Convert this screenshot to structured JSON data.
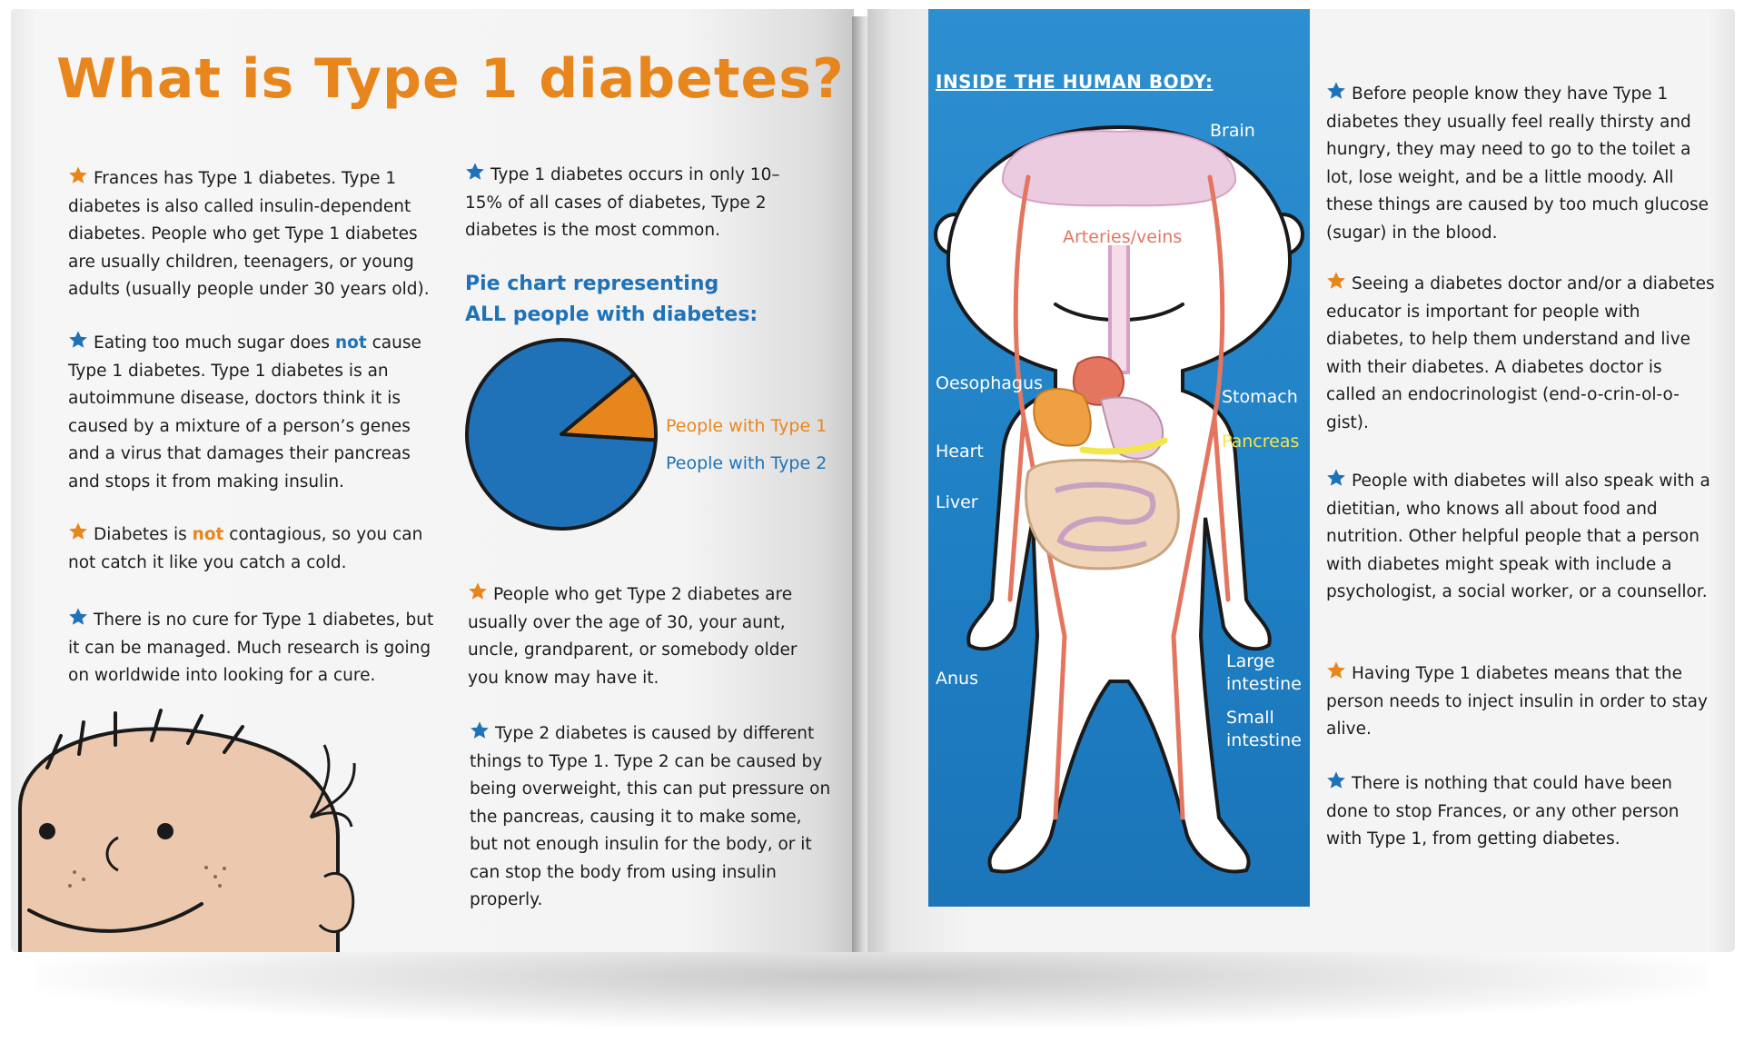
{
  "left_page": {
    "title": "What is Type 1 diabetes?",
    "col1": [
      {
        "star": "orange",
        "text": "Frances has Type 1 diabetes. Type 1 diabetes is also called insulin-dependent diabetes. People who get Type 1 diabetes are usually children, teenagers, or young adults (usually people under 30 years old)."
      },
      {
        "star": "blue",
        "before": "Eating too much sugar does ",
        "emph": "not",
        "after": " cause Type 1 diabetes. Type 1 diabetes is an autoimmune disease, doctors think it is caused by a mixture of a person’s genes and a virus that damages their pancreas and stops it from making insulin."
      },
      {
        "star": "orange",
        "before": "Diabetes is ",
        "emph": "not",
        "after": " contagious, so you can not catch it like you catch a cold."
      },
      {
        "star": "blue",
        "text": "There is no cure for Type 1 diabetes, but it can be managed. Much research is going on worldwide into looking for a cure."
      }
    ],
    "col2": [
      {
        "star": "blue",
        "text": "Type 1 diabetes occurs in only 10–15% of all cases of diabetes, Type 2 diabetes is the most common."
      },
      {
        "star": "orange",
        "text": "People who get Type 2 diabetes are usually over the age of 30, your aunt, uncle, grandparent, or somebody older you know may have it."
      },
      {
        "star": "blue",
        "text": "Type 2 diabetes is caused by different things to Type 1. Type 2 can be caused by being overweight, this can put pressure on the pancreas, causing it to make some, but not enough insulin for the body, or it can stop the body from using insulin properly."
      }
    ],
    "pie_title_line1": "Pie chart representing",
    "pie_title_line2": "ALL people with diabetes:"
  },
  "chart_data": {
    "type": "pie",
    "title": "Pie chart representing ALL people with diabetes:",
    "slices": [
      {
        "label": "People with Type 1",
        "value": 12,
        "color": "#e8861e"
      },
      {
        "label": "People with Type 2",
        "value": 88,
        "color": "#1f72b8"
      }
    ]
  },
  "right_page": {
    "panel_heading": "INSIDE THE HUMAN BODY:",
    "labels": {
      "brain": "Brain",
      "arteries": "Arteries/veins",
      "oesophagus": "Oesophagus",
      "stomach": "Stomach",
      "pancreas": "Pancreas",
      "heart": "Heart",
      "liver": "Liver",
      "large_intestine_1": "Large",
      "large_intestine_2": "intestine",
      "small_intestine_1": "Small",
      "small_intestine_2": "intestine",
      "anus": "Anus"
    },
    "paragraphs": [
      {
        "star": "blue",
        "text": "Before people know they have Type 1 diabetes they usually feel really thirsty and hungry, they may need to go to the toilet a lot, lose weight, and be a little moody. All these things are caused by too much glucose (sugar) in the blood."
      },
      {
        "star": "orange",
        "text": "Seeing a diabetes doctor and/or a diabetes educator is important for people with diabetes, to help them understand and live with their diabetes. A diabetes doctor is called an endocrinologist (end-o-crin-ol-o-gist)."
      },
      {
        "star": "blue",
        "text": "People with diabetes will also speak with a dietitian, who knows all about food and nutrition. Other helpful people that a person with diabetes might speak with include a psychologist, a social worker, or a counsellor."
      },
      {
        "star": "orange",
        "text": "Having Type 1 diabetes means that the person needs to inject insulin in order to stay alive."
      },
      {
        "star": "blue",
        "text": "There is nothing that could have been done to stop Frances, or any other person with Type 1, from getting diabetes."
      }
    ]
  },
  "colors": {
    "orange": "#e8861e",
    "blue": "#1f72b8",
    "panel_blue": "#2586c8",
    "skin": "#ecc9ae"
  },
  "icons": {
    "star": "star-icon",
    "face": "child-face-illustration",
    "body": "human-body-illustration"
  }
}
